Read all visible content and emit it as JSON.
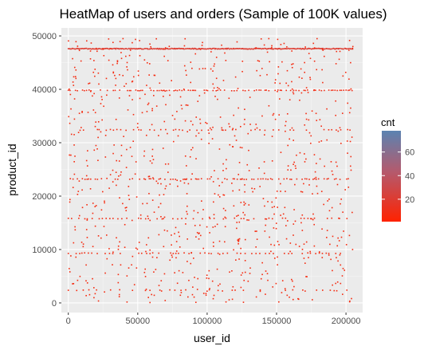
{
  "chart_data": {
    "type": "heatmap",
    "title": "HeatMap of users and orders (Sample of 100K values)",
    "xlabel": "user_id",
    "ylabel": "product_id",
    "xlim": [
      -5000,
      212000
    ],
    "ylim": [
      -1800,
      51500
    ],
    "x_ticks": [
      0,
      50000,
      100000,
      150000,
      200000
    ],
    "x_tick_labels": [
      "0",
      "50000",
      "100000",
      "150000",
      "200000"
    ],
    "y_ticks": [
      0,
      10000,
      20000,
      30000,
      40000,
      50000
    ],
    "y_tick_labels": [
      "0",
      "10000",
      "20000",
      "30000",
      "40000",
      "50000"
    ],
    "grid": true,
    "panel_background": "#ebebeb",
    "legend": {
      "title": "cnt",
      "position": "right",
      "range": [
        1,
        78
      ],
      "ticks": [
        20,
        40,
        60
      ],
      "tick_labels": [
        "20",
        "40",
        "60"
      ],
      "color_low": "#ff2200",
      "color_high": "#5b83b1"
    },
    "bands": [
      {
        "product_id": 47600,
        "x_range": [
          0,
          205000
        ],
        "density": "very high",
        "cnt": 18
      },
      {
        "product_id": 39800,
        "x_range": [
          0,
          205000
        ],
        "density": "high",
        "cnt": 8
      },
      {
        "product_id": 23200,
        "x_range": [
          0,
          205000
        ],
        "density": "high",
        "cnt": 8
      },
      {
        "product_id": 32400,
        "x_range": [
          0,
          205000
        ],
        "density": "medium",
        "cnt": 6
      },
      {
        "product_id": 15800,
        "x_range": [
          0,
          205000
        ],
        "density": "medium",
        "cnt": 6
      },
      {
        "product_id": 9300,
        "x_range": [
          0,
          205000
        ],
        "density": "medium",
        "cnt": 6
      },
      {
        "product_id": 2400,
        "x_range": [
          0,
          205000
        ],
        "density": "low",
        "cnt": 4
      }
    ],
    "scatter_density": "sparse across full range",
    "cnt_typical": 5
  }
}
